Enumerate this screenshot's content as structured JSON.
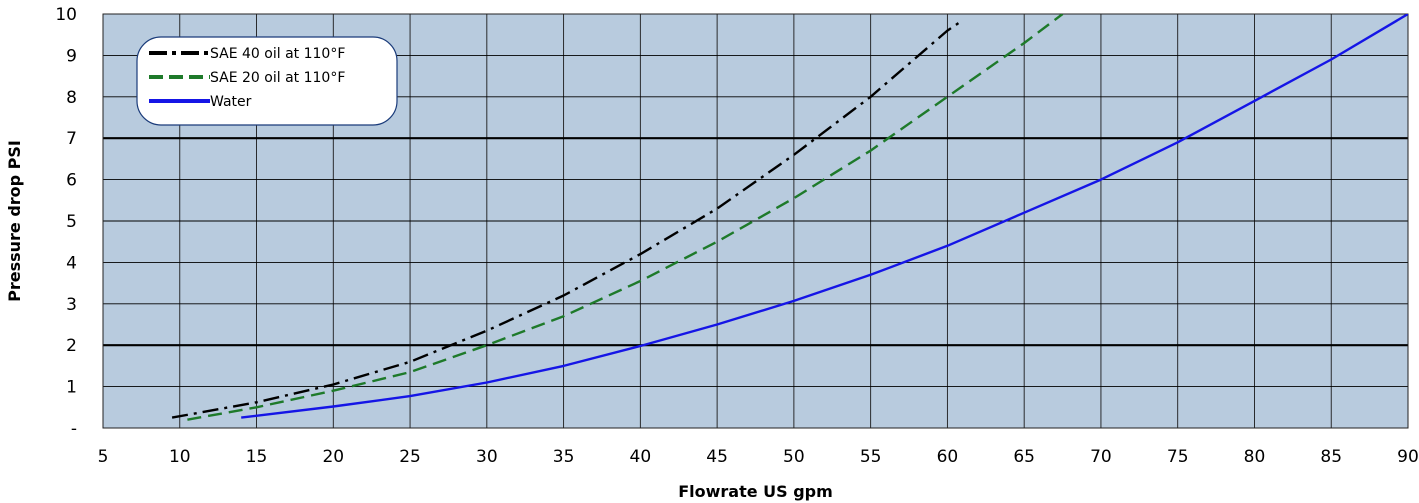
{
  "chart_data": {
    "type": "line",
    "xlabel": "Flowrate US gpm",
    "ylabel": "Pressure drop PSI",
    "xlim": [
      5,
      90
    ],
    "ylim": [
      0,
      10
    ],
    "x_ticks": [
      "5",
      "10",
      "15",
      "20",
      "25",
      "30",
      "35",
      "40",
      "45",
      "50",
      "55",
      "60",
      "65",
      "70",
      "75",
      "80",
      "85",
      "90"
    ],
    "y_ticks": [
      "-",
      "1",
      "2",
      "3",
      "4",
      "5",
      "6",
      "7",
      "8",
      "9",
      "10"
    ],
    "highlight_y": [
      2,
      7
    ],
    "grid": true,
    "legend_position": "top-left",
    "colors": {
      "plot_bg": "#b8cbde",
      "grid": "#1a1a1a"
    },
    "series": [
      {
        "name": "SAE 40 oil at 110°F",
        "style": "dash-dot",
        "color": "#000000",
        "x": [
          9.5,
          15,
          20,
          25,
          30,
          35,
          40,
          45,
          50,
          55,
          60,
          61
        ],
        "y": [
          0.25,
          0.62,
          1.05,
          1.6,
          2.35,
          3.2,
          4.2,
          5.3,
          6.6,
          8.0,
          9.6,
          9.85
        ]
      },
      {
        "name": "SAE 20 oil at 110°F",
        "style": "dash",
        "color": "#1e7a2a",
        "x": [
          10.5,
          15,
          20,
          25,
          30,
          35,
          40,
          45,
          50,
          55,
          60,
          65,
          67.5
        ],
        "y": [
          0.2,
          0.5,
          0.9,
          1.35,
          2.0,
          2.7,
          3.55,
          4.5,
          5.55,
          6.7,
          8.0,
          9.3,
          10.0
        ]
      },
      {
        "name": "Water",
        "style": "solid",
        "color": "#1515e6",
        "x": [
          14,
          20,
          25,
          30,
          35,
          40,
          45,
          50,
          55,
          60,
          65,
          70,
          75,
          80,
          85,
          90
        ],
        "y": [
          0.25,
          0.52,
          0.77,
          1.1,
          1.5,
          1.98,
          2.5,
          3.07,
          3.7,
          4.4,
          5.2,
          6.0,
          6.9,
          7.9,
          8.9,
          10.0
        ]
      }
    ]
  }
}
